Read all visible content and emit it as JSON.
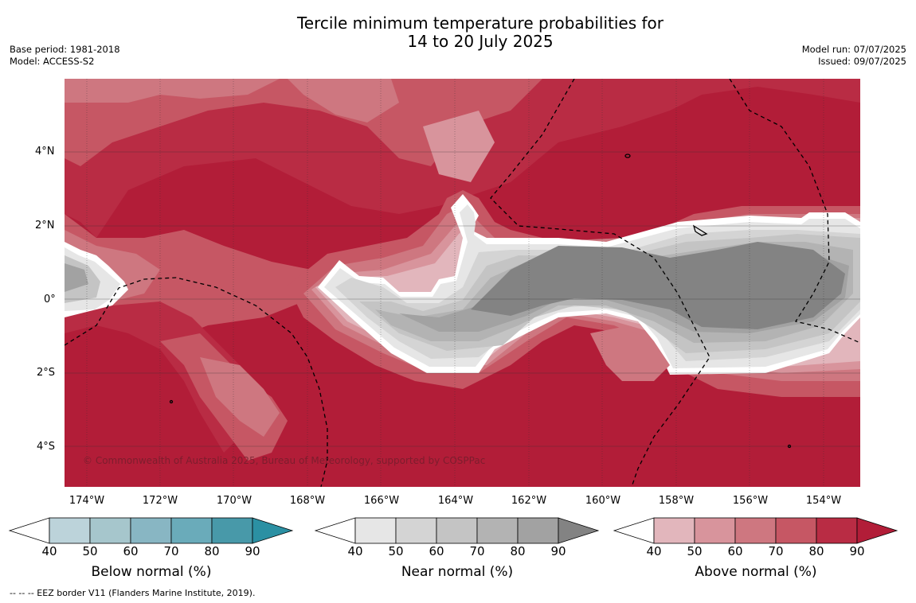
{
  "title_line1": "Tercile minimum temperature probabilities for",
  "title_line2": "14 to 20 July 2025",
  "base_period": "Base period: 1981-2018",
  "model": "Model: ACCESS-S2",
  "model_run": "Model run: 07/07/2025",
  "issued": "Issued: 09/07/2025",
  "copyright": "© Commonwealth of Australia 2025, Bureau of Meteorology, supported by COSPPac",
  "lat_labels": [
    "4°N",
    "2°N",
    "0°",
    "2°S",
    "4°S"
  ],
  "lon_labels": [
    "174°W",
    "172°W",
    "170°W",
    "168°W",
    "166°W",
    "164°W",
    "162°W",
    "160°W",
    "158°W",
    "156°W",
    "154°W"
  ],
  "legends": [
    {
      "caption": "Below normal (%)",
      "ticks": [
        "40",
        "50",
        "60",
        "70",
        "80",
        "90"
      ],
      "colors": [
        "#bcd3da",
        "#a6c6cc",
        "#88b6c3",
        "#6aabba",
        "#4899a9",
        "#2b90a3"
      ]
    },
    {
      "caption": "Near normal (%)",
      "ticks": [
        "40",
        "50",
        "60",
        "70",
        "80",
        "90"
      ],
      "colors": [
        "#e6e6e6",
        "#d4d4d4",
        "#c4c4c4",
        "#b3b3b3",
        "#a2a2a2",
        "#838383"
      ]
    },
    {
      "caption": "Above normal (%)",
      "ticks": [
        "40",
        "50",
        "60",
        "70",
        "80",
        "90"
      ],
      "colors": [
        "#e2b6bc",
        "#d8949c",
        "#ce7780",
        "#c65764",
        "#b92c44",
        "#b21d38"
      ]
    }
  ],
  "footnote": "--  --  -- EEZ border V11 (Flanders Marine Institute, 2019).",
  "colors": {
    "above_40": "#e2b6bc",
    "above_50": "#d8949c",
    "above_60": "#ce7780",
    "above_70": "#c65764",
    "above_80": "#b92c44",
    "above_90": "#b21d38",
    "near_40": "#e6e6e6",
    "near_50": "#d4d4d4",
    "near_60": "#c4c4c4",
    "near_70": "#b3b3b3",
    "near_80": "#a2a2a2",
    "near_90": "#838383"
  }
}
